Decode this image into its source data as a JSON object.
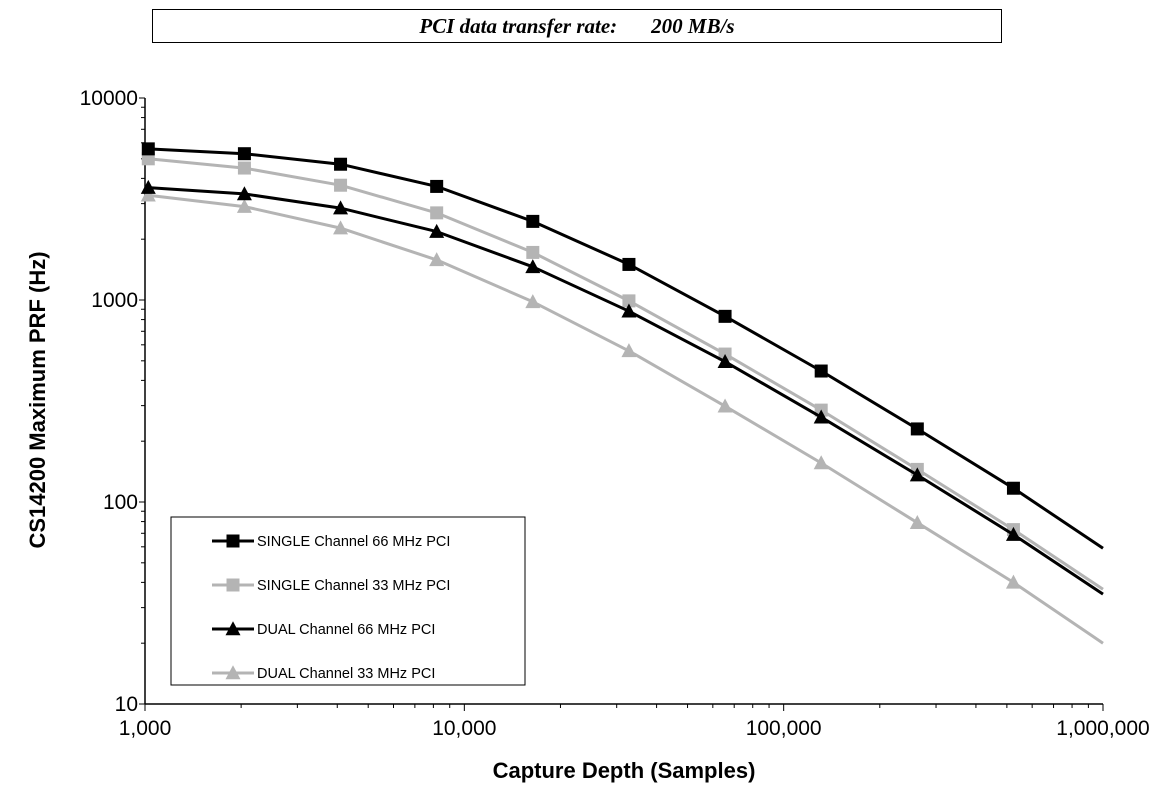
{
  "header": {
    "label": "PCI data transfer rate:",
    "value": "200 MB/s"
  },
  "chart_data": {
    "type": "line",
    "xlabel": "Capture Depth (Samples)",
    "ylabel": "CS14200 Maximum PRF (Hz)",
    "xscale": "log",
    "yscale": "log",
    "xlim": [
      1000,
      1000000
    ],
    "ylim": [
      10,
      10000
    ],
    "x_ticks": [
      {
        "value": 1000,
        "label": "1,000"
      },
      {
        "value": 10000,
        "label": "10,000"
      },
      {
        "value": 100000,
        "label": "100,000"
      },
      {
        "value": 1000000,
        "label": "1,000,000"
      }
    ],
    "y_ticks": [
      {
        "value": 10,
        "label": "10"
      },
      {
        "value": 100,
        "label": "100"
      },
      {
        "value": 1000,
        "label": "1000"
      },
      {
        "value": 10000,
        "label": "10000"
      }
    ],
    "grid": false,
    "legend_position": "bottom-left",
    "series": [
      {
        "name": "SINGLE Channel 66 MHz PCI",
        "color": "#000000",
        "marker": "square",
        "x": [
          1024,
          2048,
          4096,
          8192,
          16384,
          32768,
          65536,
          131072,
          262144,
          524288,
          1000000
        ],
        "y": [
          5600,
          5300,
          4700,
          3650,
          2450,
          1500,
          830,
          445,
          230,
          117,
          59
        ],
        "marked": [
          true,
          true,
          true,
          true,
          true,
          true,
          true,
          true,
          true,
          true,
          false
        ]
      },
      {
        "name": "SINGLE Channel 33 MHz PCI",
        "color": "#b4b4b4",
        "marker": "square",
        "x": [
          1024,
          2048,
          4096,
          8192,
          16384,
          32768,
          65536,
          131072,
          262144,
          524288,
          1000000
        ],
        "y": [
          5000,
          4500,
          3700,
          2700,
          1720,
          990,
          540,
          285,
          145,
          73,
          37
        ],
        "marked": [
          true,
          true,
          true,
          true,
          true,
          true,
          true,
          true,
          true,
          true,
          false
        ]
      },
      {
        "name": "DUAL Channel 66 MHz PCI",
        "color": "#000000",
        "marker": "triangle",
        "x": [
          1024,
          2048,
          4096,
          8192,
          16384,
          32768,
          65536,
          131072,
          262144,
          524288,
          1000000
        ],
        "y": [
          3600,
          3350,
          2850,
          2180,
          1460,
          880,
          495,
          263,
          136,
          69,
          35
        ],
        "marked": [
          true,
          true,
          true,
          true,
          true,
          true,
          true,
          true,
          true,
          true,
          false
        ]
      },
      {
        "name": "DUAL Channel 33 MHz PCI",
        "color": "#b4b4b4",
        "marker": "triangle",
        "x": [
          1024,
          2048,
          4096,
          8192,
          16384,
          32768,
          65536,
          131072,
          262144,
          524288,
          1000000
        ],
        "y": [
          3300,
          2900,
          2270,
          1580,
          980,
          560,
          298,
          156,
          79,
          40,
          20
        ],
        "marked": [
          true,
          true,
          true,
          true,
          true,
          true,
          true,
          true,
          true,
          true,
          false
        ]
      }
    ]
  }
}
